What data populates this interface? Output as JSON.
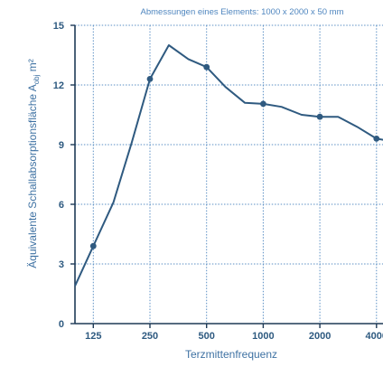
{
  "chart_data": {
    "type": "line",
    "annotation": "Abmessungen eines Elements: 1000 x 2000 x 50 mm",
    "xlabel": "Terzmittenfrequenz",
    "ylabel": {
      "text": "Äquivalente Schallabsorptionsfläche A",
      "subscript": "obj",
      "unit": " m²"
    },
    "x_scale": "log2",
    "x_ticks": [
      {
        "value": 125,
        "label": "125"
      },
      {
        "value": 250,
        "label": "250"
      },
      {
        "value": 500,
        "label": "500"
      },
      {
        "value": 1000,
        "label": "1000"
      },
      {
        "value": 2000,
        "label": "2000"
      },
      {
        "value": 4000,
        "label": "4000"
      }
    ],
    "y_ticks": [
      {
        "value": 0,
        "label": "0"
      },
      {
        "value": 3,
        "label": "3"
      },
      {
        "value": 6,
        "label": "6"
      },
      {
        "value": 9,
        "label": "9"
      },
      {
        "value": 12,
        "label": "12"
      },
      {
        "value": 15,
        "label": "15"
      }
    ],
    "ylim": [
      0,
      15
    ],
    "grid": true,
    "series": [
      {
        "color": "#2f5a80",
        "x": [
          100,
          125,
          160,
          200,
          250,
          315,
          400,
          500,
          630,
          800,
          1000,
          1250,
          1600,
          2000,
          2500,
          3150,
          4000,
          4600
        ],
        "y": [
          1.9,
          3.9,
          6.1,
          9.1,
          12.3,
          14.0,
          13.3,
          12.9,
          11.9,
          11.1,
          11.05,
          10.9,
          10.5,
          10.4,
          10.4,
          9.9,
          9.3,
          9.2
        ],
        "markers_at": [
          125,
          250,
          500,
          1000,
          2000,
          4000
        ]
      }
    ]
  }
}
